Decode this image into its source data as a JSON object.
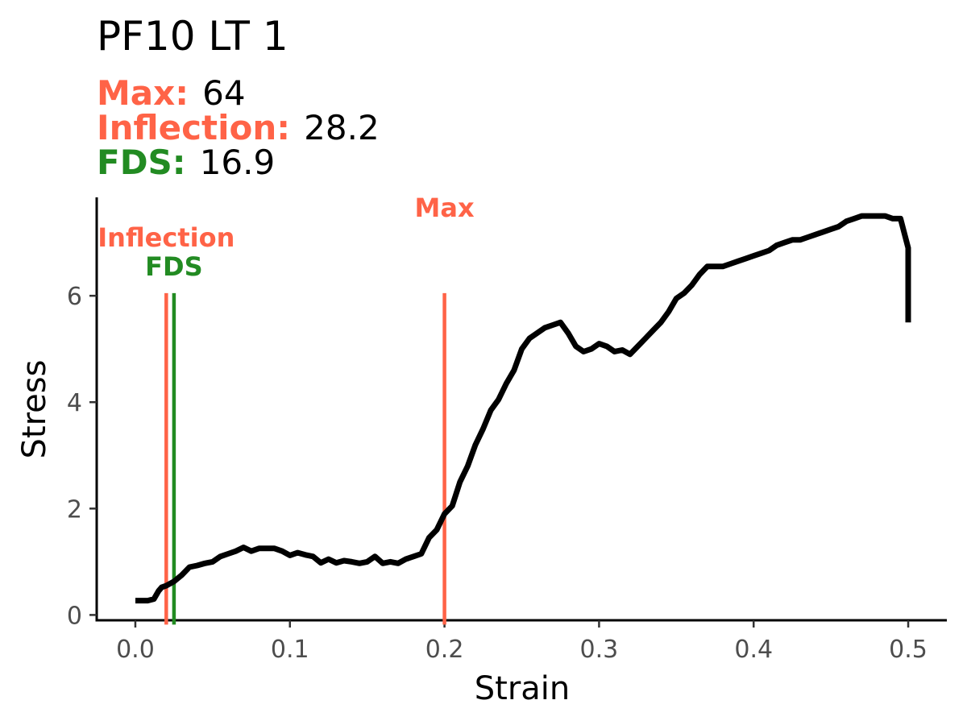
{
  "chart_data": {
    "type": "line",
    "title": "PF10 LT 1",
    "subtitle": [
      {
        "label": "Max:",
        "value": "64",
        "color": "#ff6347"
      },
      {
        "label": "Inflection:",
        "value": "28.2",
        "color": "#ff6347"
      },
      {
        "label": "FDS:",
        "value": "16.9",
        "color": "#228b22"
      }
    ],
    "xlabel": "Strain",
    "ylabel": "Stress",
    "xlim": [
      -0.025,
      0.525
    ],
    "ylim": [
      -0.1,
      7.85
    ],
    "xticks": [
      0.0,
      0.1,
      0.2,
      0.3,
      0.4,
      0.5
    ],
    "xtick_labels": [
      "0.0",
      "0.1",
      "0.2",
      "0.3",
      "0.4",
      "0.5"
    ],
    "yticks": [
      0,
      2,
      4,
      6
    ],
    "ytick_labels": [
      "0",
      "2",
      "4",
      "6"
    ],
    "grid": false,
    "line_color": "#000000",
    "series": [
      {
        "x": [
          0.0,
          0.008,
          0.012,
          0.015,
          0.017,
          0.02,
          0.025,
          0.03,
          0.035,
          0.04,
          0.045,
          0.05,
          0.055,
          0.06,
          0.065,
          0.07,
          0.075,
          0.08,
          0.09,
          0.095,
          0.1,
          0.105,
          0.11,
          0.115,
          0.12,
          0.125,
          0.13,
          0.135,
          0.14,
          0.145,
          0.15,
          0.155,
          0.16,
          0.165,
          0.17,
          0.175,
          0.18,
          0.185,
          0.19,
          0.195,
          0.2,
          0.205,
          0.21,
          0.215,
          0.22,
          0.225,
          0.23,
          0.235,
          0.24,
          0.245,
          0.25,
          0.255,
          0.26,
          0.265,
          0.27,
          0.275,
          0.28,
          0.285,
          0.29,
          0.295,
          0.3,
          0.305,
          0.31,
          0.315,
          0.32,
          0.325,
          0.33,
          0.335,
          0.34,
          0.345,
          0.35,
          0.355,
          0.36,
          0.365,
          0.37,
          0.375,
          0.38,
          0.385,
          0.39,
          0.395,
          0.4,
          0.405,
          0.41,
          0.415,
          0.42,
          0.425,
          0.43,
          0.435,
          0.44,
          0.445,
          0.45,
          0.455,
          0.46,
          0.465,
          0.47,
          0.475,
          0.48,
          0.485,
          0.49,
          0.495,
          0.5,
          0.5
        ],
        "y": [
          0.27,
          0.27,
          0.3,
          0.45,
          0.52,
          0.55,
          0.63,
          0.75,
          0.9,
          0.93,
          0.97,
          1.0,
          1.1,
          1.15,
          1.2,
          1.27,
          1.2,
          1.25,
          1.25,
          1.2,
          1.12,
          1.17,
          1.13,
          1.1,
          0.98,
          1.05,
          0.98,
          1.02,
          1.0,
          0.97,
          1.0,
          1.1,
          0.97,
          1.0,
          0.97,
          1.05,
          1.1,
          1.15,
          1.45,
          1.6,
          1.9,
          2.05,
          2.5,
          2.8,
          3.2,
          3.5,
          3.85,
          4.05,
          4.35,
          4.6,
          5.0,
          5.2,
          5.3,
          5.4,
          5.45,
          5.5,
          5.3,
          5.05,
          4.95,
          5.0,
          5.1,
          5.05,
          4.95,
          4.98,
          4.9,
          5.05,
          5.2,
          5.35,
          5.5,
          5.7,
          5.95,
          6.05,
          6.2,
          6.4,
          6.55,
          6.55,
          6.55,
          6.6,
          6.65,
          6.7,
          6.75,
          6.8,
          6.85,
          6.95,
          7.0,
          7.05,
          7.05,
          7.1,
          7.15,
          7.2,
          7.25,
          7.3,
          7.4,
          7.45,
          7.5,
          7.5,
          7.5,
          7.5,
          7.45,
          7.45,
          6.9,
          5.5
        ]
      }
    ],
    "vlines": [
      {
        "label": "Inflection",
        "x": 0.02,
        "color": "#ff6347",
        "ymin": 0,
        "ymax": 6.05
      },
      {
        "label": "FDS",
        "x": 0.025,
        "color": "#228b22",
        "ymin": 0,
        "ymax": 6.05
      },
      {
        "label": "Max",
        "x": 0.2,
        "color": "#ff6347",
        "ymin": 0,
        "ymax": 6.05
      }
    ]
  }
}
